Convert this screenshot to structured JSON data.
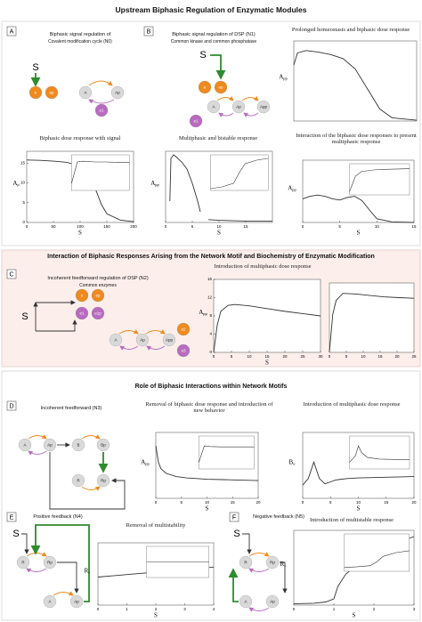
{
  "title": "Upstream Biphasic Regulation of Enzymatic Modules",
  "sections": [
    {
      "title": "Interaction of Biphasic Responses Arising from the Network Motif and Biochemistry of Enzymatic Modification"
    },
    {
      "title": "Role of Biphasic Interactions within Network Motifs"
    }
  ],
  "panels": [
    {
      "letter": "A",
      "caption": "Biphasic signal regulation of",
      "caption2": "Covalent modification cycle (N0)",
      "nodes": [
        {
          "label": "S",
          "color": "none"
        },
        {
          "label": "e",
          "color": "#ee8a1f"
        },
        {
          "label": "ep",
          "color": "#ee8a1f"
        },
        {
          "label": "A",
          "color": "#d9d9d9"
        },
        {
          "label": "Ap",
          "color": "#d9d9d9"
        },
        {
          "label": "e1",
          "color": "#b86bbf"
        }
      ]
    },
    {
      "letter": "B",
      "caption": "Biphasic signal regulation of DSP (N1)",
      "caption2": "Common kinase and common phosphatase",
      "nodes": [
        {
          "label": "S",
          "color": "none"
        },
        {
          "label": "e",
          "color": "#ee8a1f"
        },
        {
          "label": "ep",
          "color": "#ee8a1f"
        },
        {
          "label": "A",
          "color": "#d9d9d9"
        },
        {
          "label": "Ap",
          "color": "#d9d9d9"
        },
        {
          "label": "App",
          "color": "#d9d9d9"
        },
        {
          "label": "e1",
          "color": "#b86bbf"
        }
      ]
    },
    {
      "letter": "C",
      "caption": "Incoherent feedforward regulation of DSP (N2)",
      "caption2": "Common enzymes",
      "nodes": [
        {
          "label": "S",
          "color": "none"
        },
        {
          "label": "e",
          "color": "#ee8a1f"
        },
        {
          "label": "ep",
          "color": "#ee8a1f"
        },
        {
          "label": "e1",
          "color": "#b86bbf"
        },
        {
          "label": "e1p",
          "color": "#b86bbf"
        },
        {
          "label": "A",
          "color": "#d9d9d9"
        },
        {
          "label": "Ap",
          "color": "#d9d9d9"
        },
        {
          "label": "App",
          "color": "#d9d9d9"
        },
        {
          "label": "e2",
          "color": "#ee8a1f"
        },
        {
          "label": "e3",
          "color": "#b86bbf"
        }
      ]
    },
    {
      "letter": "D",
      "caption": "Incoherent feedforward (N3)",
      "nodes": [
        {
          "label": "A",
          "color": "#d9d9d9"
        },
        {
          "label": "Ap",
          "color": "#d9d9d9"
        },
        {
          "label": "B",
          "color": "#d9d9d9"
        },
        {
          "label": "Bp",
          "color": "#d9d9d9"
        },
        {
          "label": "R",
          "color": "#d9d9d9"
        },
        {
          "label": "Rp",
          "color": "#d9d9d9"
        }
      ]
    },
    {
      "letter": "E",
      "caption": "Positive feedback (N4)",
      "nodes": [
        {
          "label": "S",
          "color": "none"
        },
        {
          "label": "R",
          "color": "#d9d9d9"
        },
        {
          "label": "Rp",
          "color": "#d9d9d9"
        },
        {
          "label": "A",
          "color": "#d9d9d9"
        },
        {
          "label": "Ap",
          "color": "#d9d9d9"
        }
      ]
    },
    {
      "letter": "F",
      "caption": "Negative feedback (N5)",
      "nodes": [
        {
          "label": "S",
          "color": "none"
        },
        {
          "label": "R",
          "color": "#d9d9d9"
        },
        {
          "label": "Rp",
          "color": "#d9d9d9"
        },
        {
          "label": "A",
          "color": "#d9d9d9"
        },
        {
          "label": "Ap",
          "color": "#d9d9d9"
        }
      ]
    }
  ],
  "chart_data": [
    {
      "type": "line",
      "title": "Prolonged homeostasis and biphasic dose response",
      "ylabel": "A",
      "ylabel_sub": "pp",
      "color": "#333333",
      "xlim": [
        0,
        10
      ],
      "ylim": [
        0,
        1
      ],
      "x": [
        0,
        0.3,
        1,
        2,
        3,
        4,
        5,
        6,
        7,
        8,
        10
      ],
      "series": [
        {
          "values": [
            0.7,
            0.85,
            0.88,
            0.86,
            0.83,
            0.78,
            0.65,
            0.4,
            0.15,
            0.04,
            0.01
          ]
        }
      ]
    },
    {
      "type": "line",
      "title": "Biphasic dose response with signal",
      "xlabel": "S",
      "ylabel": "A",
      "ylabel_sub": "p",
      "color": "#333333",
      "xlim": [
        0,
        200
      ],
      "ylim": [
        0,
        18
      ],
      "xticks": [
        0,
        50,
        100,
        150,
        200
      ],
      "yticks": [
        0,
        5,
        10,
        15
      ],
      "x": [
        0,
        25,
        50,
        75,
        100,
        110,
        120,
        130,
        140,
        150,
        175,
        200
      ],
      "series": [
        {
          "values": [
            15.8,
            15.7,
            15.5,
            15.2,
            14.3,
            13.2,
            11,
            8,
            4.5,
            2.2,
            0.6,
            0.2
          ]
        }
      ],
      "inset": {
        "x": [
          0,
          1,
          2,
          4,
          6,
          8,
          10
        ],
        "values": [
          0.2,
          0.8,
          0.82,
          0.8,
          0.8,
          0.79,
          0.79
        ],
        "xlim": [
          0,
          10
        ],
        "ylim": [
          0,
          1
        ]
      }
    },
    {
      "type": "line",
      "title": "Multiphasic and bistable response",
      "xlabel": "S",
      "ylabel": "A",
      "ylabel_sub": "pp",
      "color": "#333333",
      "xlim": [
        0,
        20
      ],
      "ylim": [
        0,
        1
      ],
      "xticks": [
        0,
        5,
        10,
        15
      ],
      "x": [
        0.8,
        1,
        1.5,
        2,
        3,
        4,
        5,
        6,
        6.5,
        7,
        8,
        10,
        15,
        20
      ],
      "series": [
        {
          "values": [
            0.3,
            0.9,
            0.95,
            0.92,
            0.85,
            0.75,
            0.55,
            0.3,
            0.15,
            null,
            0.04,
            0.03,
            0.02,
            0.02
          ]
        }
      ],
      "inset": {
        "x": [
          0,
          2,
          4,
          5,
          6,
          8,
          10
        ],
        "values": [
          0.05,
          0.1,
          0.2,
          0.5,
          0.75,
          0.85,
          0.9
        ],
        "xlim": [
          0,
          10
        ],
        "ylim": [
          0,
          1
        ]
      }
    },
    {
      "type": "line",
      "title": "Interaction of the biphasic dose responses to present multiphasic response",
      "xlabel": "S",
      "ylabel": "A",
      "ylabel_sub": "pp",
      "color": "#333333",
      "xlim": [
        0,
        15
      ],
      "ylim": [
        0,
        1
      ],
      "xticks": [
        0,
        5,
        10,
        15
      ],
      "x": [
        0,
        1,
        2,
        3,
        4,
        5,
        6,
        7,
        8,
        9,
        10,
        12,
        15
      ],
      "series": [
        {
          "values": [
            0.38,
            0.42,
            0.44,
            0.42,
            0.38,
            0.36,
            0.4,
            0.42,
            0.35,
            0.2,
            0.06,
            0.01,
            0
          ]
        }
      ],
      "inset": {
        "x": [
          0,
          1,
          2,
          4,
          6,
          8,
          10
        ],
        "values": [
          0.1,
          0.6,
          0.75,
          0.8,
          0.82,
          0.83,
          0.84
        ],
        "xlim": [
          0,
          10
        ],
        "ylim": [
          0,
          1
        ]
      }
    },
    {
      "type": "line",
      "title": "Introduction of multiphasic dose response",
      "xlabel": "S",
      "ylabel": "A",
      "ylabel_sub": "pp",
      "color": "#333333",
      "xlim": [
        0,
        30
      ],
      "ylim": [
        0,
        16
      ],
      "xticks": [
        0,
        5,
        10,
        15,
        20,
        25,
        30
      ],
      "yticks": [
        0,
        4,
        8,
        12,
        16
      ],
      "x": [
        0,
        1,
        2,
        4,
        6,
        10,
        15,
        20,
        25,
        30
      ],
      "series": [
        {
          "values": [
            0,
            6,
            9,
            10.3,
            10.5,
            10.2,
            9.6,
            9,
            8.5,
            8
          ]
        }
      ]
    },
    {
      "type": "line",
      "color": "#333333",
      "xlim": [
        0,
        25
      ],
      "ylim": [
        0,
        1
      ],
      "xticks": [
        0,
        5,
        10,
        15,
        20,
        25
      ],
      "x": [
        0,
        1,
        2,
        4,
        8,
        12,
        16,
        20,
        25
      ],
      "series": [
        {
          "values": [
            0,
            0.55,
            0.75,
            0.85,
            0.84,
            0.82,
            0.8,
            0.79,
            0.78
          ]
        }
      ]
    },
    {
      "type": "line",
      "title": "Removal of biphasic dose response and introduction of new behavior",
      "xlabel": "S",
      "ylabel": "A",
      "ylabel_sub": "pp",
      "color": "#333333",
      "xlim": [
        0,
        20
      ],
      "ylim": [
        0,
        1
      ],
      "xticks": [
        0,
        5,
        10,
        15,
        20
      ],
      "x": [
        0,
        0.5,
        1,
        2,
        4,
        6,
        10,
        15,
        20
      ],
      "series": [
        {
          "values": [
            0.8,
            0.55,
            0.45,
            0.38,
            0.33,
            0.31,
            0.29,
            0.28,
            0.27
          ]
        }
      ],
      "inset": {
        "x": [
          0,
          1,
          2,
          4,
          6,
          8,
          10
        ],
        "values": [
          0.2,
          0.7,
          0.68,
          0.67,
          0.67,
          0.67,
          0.67
        ],
        "xlim": [
          0,
          10
        ],
        "ylim": [
          0,
          1
        ]
      }
    },
    {
      "type": "line",
      "title": "Introduction of multiphasic dose response",
      "xlabel": "S",
      "ylabel": "B",
      "ylabel_sub": "u",
      "color": "#333333",
      "xlim": [
        0,
        20
      ],
      "ylim": [
        0,
        1
      ],
      "xticks": [
        0,
        5,
        10,
        15,
        20
      ],
      "x": [
        0,
        1,
        2,
        3,
        4,
        5,
        6,
        8,
        10,
        15,
        20
      ],
      "series": [
        {
          "values": [
            0.2,
            0.3,
            0.55,
            0.3,
            0.22,
            0.25,
            0.28,
            0.3,
            0.31,
            0.32,
            0.33
          ]
        }
      ],
      "inset": {
        "x": [
          0,
          1,
          1.5,
          2,
          3,
          5,
          10
        ],
        "values": [
          0.2,
          0.4,
          0.7,
          0.5,
          0.35,
          0.3,
          0.28
        ],
        "xlim": [
          0,
          10
        ],
        "ylim": [
          0,
          1
        ]
      }
    },
    {
      "type": "line",
      "title": "Removal of multistability",
      "xlabel": "S",
      "ylabel": "R",
      "ylabel_sub": "c",
      "color": "#333333",
      "xlim": [
        0,
        4
      ],
      "ylim": [
        0,
        1
      ],
      "xticks": [
        0,
        1,
        2,
        3,
        4
      ],
      "x": [
        0,
        1,
        2,
        3,
        4
      ],
      "series": [
        {
          "values": [
            0.45,
            0.49,
            0.53,
            0.57,
            0.61
          ]
        }
      ],
      "inset": {
        "x": [
          0,
          1,
          2,
          3,
          4
        ],
        "values": [
          0.5,
          0.5,
          0.5,
          0.5,
          0.5
        ],
        "xlim": [
          0,
          4
        ],
        "ylim": [
          0,
          1
        ]
      }
    },
    {
      "type": "line",
      "title": "Introduction of multistable response",
      "xlabel": "S",
      "ylabel": "R",
      "ylabel_sub": "c",
      "color": "#333333",
      "xlim": [
        0,
        3
      ],
      "ylim": [
        0,
        1.2
      ],
      "xticks": [
        0,
        1,
        2,
        3
      ],
      "x": [
        0,
        0.5,
        0.8,
        1,
        1.1,
        1.3,
        1.6,
        2,
        2.4,
        3
      ],
      "series": [
        {
          "values": [
            0.02,
            0.03,
            0.05,
            0.1,
            0.3,
            0.5,
            0.65,
            0.8,
            0.95,
            1.1
          ]
        }
      ],
      "inset": {
        "x": [
          0,
          2,
          4,
          5,
          6,
          8,
          10
        ],
        "values": [
          0.1,
          0.12,
          0.15,
          0.25,
          0.4,
          0.5,
          0.55
        ],
        "xlim": [
          0,
          10
        ],
        "ylim": [
          0,
          1
        ]
      }
    }
  ]
}
